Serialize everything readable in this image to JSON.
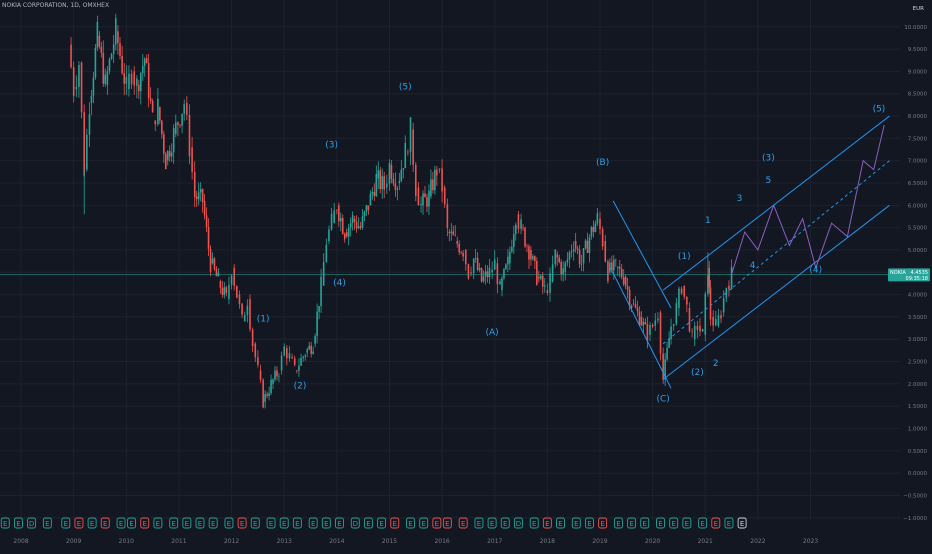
{
  "header": {
    "symbol_title": "NOKIA CORPORATION, 1D, OMXHEX",
    "currency": "EUR"
  },
  "price_tag": {
    "symbol": "NOKIA",
    "price": "4.4535",
    "countdown": "09:35:18"
  },
  "colors": {
    "background": "#131722",
    "grid": "#1e222d",
    "up": "#26a69a",
    "down": "#ef5350",
    "channel": "#2196f3",
    "projection": "#8b5fbf",
    "labels": "#2f9fe8",
    "axis_text": "#787b86"
  },
  "chart_data": {
    "type": "line",
    "title": "NOKIA CORPORATION, 1D, OMXHEX",
    "yunit": "EUR",
    "ylim": [
      -1.05,
      10.6
    ],
    "y_ticks": [
      -1.0,
      -0.5,
      0.0,
      0.5,
      1.0,
      1.5,
      2.0,
      2.5,
      3.0,
      3.5,
      4.0,
      4.5,
      5.0,
      5.5,
      6.0,
      6.5,
      7.0,
      7.5,
      8.0,
      8.5,
      9.0,
      9.5,
      10.0
    ],
    "xlim": [
      2007.6,
      2024.7
    ],
    "x_ticks": [
      "2008",
      "2009",
      "2010",
      "2011",
      "2012",
      "2013",
      "2014",
      "2015",
      "2016",
      "2017",
      "2018",
      "2019",
      "2020",
      "2021",
      "2022",
      "2023"
    ],
    "grid": true,
    "last_price": 4.4535,
    "series": [
      {
        "values": [
          [
            2008.9,
            9.6
          ],
          [
            2009.0,
            8.6
          ],
          [
            2009.1,
            9.2
          ],
          [
            2009.2,
            6.8
          ],
          [
            2009.3,
            8.3
          ],
          [
            2009.45,
            9.8
          ],
          [
            2009.6,
            8.7
          ],
          [
            2009.8,
            9.9
          ],
          [
            2010.0,
            8.6
          ],
          [
            2010.1,
            9.0
          ],
          [
            2010.2,
            8.7
          ],
          [
            2010.35,
            9.3
          ],
          [
            2010.5,
            7.9
          ],
          [
            2010.6,
            8.2
          ],
          [
            2010.75,
            7.0
          ],
          [
            2010.9,
            7.6
          ],
          [
            2011.1,
            8.3
          ],
          [
            2011.2,
            7.3
          ],
          [
            2011.3,
            6.2
          ],
          [
            2011.45,
            6.1
          ],
          [
            2011.6,
            4.7
          ],
          [
            2011.75,
            4.3
          ],
          [
            2011.9,
            3.9
          ],
          [
            2012.0,
            4.6
          ],
          [
            2012.1,
            4.0
          ],
          [
            2012.2,
            3.4
          ],
          [
            2012.3,
            3.9
          ],
          [
            2012.4,
            2.9
          ],
          [
            2012.5,
            2.3
          ],
          [
            2012.6,
            1.6
          ],
          [
            2012.75,
            2.0
          ],
          [
            2012.9,
            2.3
          ],
          [
            2013.0,
            2.8
          ],
          [
            2013.1,
            2.6
          ],
          [
            2013.2,
            2.3
          ],
          [
            2013.4,
            2.7
          ],
          [
            2013.55,
            2.9
          ],
          [
            2013.7,
            4.2
          ],
          [
            2013.8,
            5.2
          ],
          [
            2013.9,
            5.6
          ],
          [
            2014.0,
            6.0
          ],
          [
            2014.15,
            5.4
          ],
          [
            2014.3,
            5.7
          ],
          [
            2014.45,
            5.5
          ],
          [
            2014.6,
            6.0
          ],
          [
            2014.75,
            6.6
          ],
          [
            2014.9,
            6.4
          ],
          [
            2015.0,
            6.9
          ],
          [
            2015.15,
            6.5
          ],
          [
            2015.3,
            7.2
          ],
          [
            2015.4,
            7.7
          ],
          [
            2015.5,
            6.4
          ],
          [
            2015.6,
            6.0
          ],
          [
            2015.75,
            6.2
          ],
          [
            2015.9,
            6.8
          ],
          [
            2016.0,
            6.4
          ],
          [
            2016.1,
            5.4
          ],
          [
            2016.25,
            5.2
          ],
          [
            2016.4,
            5.0
          ],
          [
            2016.5,
            4.5
          ],
          [
            2016.6,
            4.8
          ],
          [
            2016.75,
            4.3
          ],
          [
            2016.9,
            4.5
          ],
          [
            2017.0,
            4.7
          ],
          [
            2017.1,
            4.1
          ],
          [
            2017.25,
            4.7
          ],
          [
            2017.4,
            5.8
          ],
          [
            2017.5,
            5.5
          ],
          [
            2017.65,
            5.0
          ],
          [
            2017.8,
            4.4
          ],
          [
            2017.95,
            4.1
          ],
          [
            2018.05,
            4.3
          ],
          [
            2018.15,
            4.9
          ],
          [
            2018.3,
            4.5
          ],
          [
            2018.5,
            5.2
          ],
          [
            2018.65,
            4.7
          ],
          [
            2018.8,
            5.3
          ],
          [
            2018.95,
            5.7
          ],
          [
            2019.05,
            5.2
          ],
          [
            2019.15,
            4.5
          ],
          [
            2019.3,
            4.6
          ],
          [
            2019.45,
            4.4
          ],
          [
            2019.6,
            3.8
          ],
          [
            2019.75,
            3.5
          ],
          [
            2019.9,
            3.1
          ],
          [
            2020.0,
            3.3
          ],
          [
            2020.1,
            3.6
          ],
          [
            2020.2,
            2.1
          ],
          [
            2020.35,
            3.3
          ],
          [
            2020.45,
            3.7
          ],
          [
            2020.55,
            4.2
          ],
          [
            2020.65,
            3.7
          ],
          [
            2020.75,
            3.0
          ],
          [
            2020.85,
            3.3
          ],
          [
            2020.95,
            3.1
          ],
          [
            2021.05,
            4.6
          ],
          [
            2021.1,
            3.5
          ],
          [
            2021.2,
            3.3
          ],
          [
            2021.3,
            3.6
          ],
          [
            2021.4,
            4.2
          ],
          [
            2021.5,
            4.45
          ]
        ]
      },
      {
        "values": [
          [
            2021.5,
            4.45
          ],
          [
            2021.75,
            5.4
          ],
          [
            2022.0,
            5.0
          ],
          [
            2022.3,
            6.0
          ],
          [
            2022.6,
            5.1
          ],
          [
            2022.85,
            5.7
          ],
          [
            2023.1,
            4.6
          ],
          [
            2023.4,
            5.6
          ],
          [
            2023.7,
            5.3
          ],
          [
            2024.0,
            7.0
          ],
          [
            2024.2,
            6.8
          ],
          [
            2024.4,
            7.8
          ]
        ]
      }
    ],
    "channels": [
      {
        "upper": [
          [
            2019.25,
            6.1
          ],
          [
            2020.35,
            3.7
          ]
        ],
        "lower": [
          [
            2019.2,
            4.6
          ],
          [
            2020.35,
            1.9
          ]
        ]
      },
      {
        "upper": [
          [
            2020.2,
            4.1
          ],
          [
            2024.5,
            8.0
          ]
        ],
        "mid": [
          [
            2020.2,
            2.9
          ],
          [
            2024.5,
            7.0
          ]
        ],
        "lower": [
          [
            2020.2,
            2.1
          ],
          [
            2024.5,
            6.0
          ]
        ]
      }
    ],
    "wave_labels": [
      {
        "text": "(1)",
        "x": 2012.6,
        "y": 3.4
      },
      {
        "text": "(2)",
        "x": 2013.3,
        "y": 1.9
      },
      {
        "text": "(3)",
        "x": 2013.9,
        "y": 7.3
      },
      {
        "text": "(4)",
        "x": 2014.05,
        "y": 4.2
      },
      {
        "text": "(5)",
        "x": 2015.3,
        "y": 8.6
      },
      {
        "text": "(A)",
        "x": 2016.95,
        "y": 3.1
      },
      {
        "text": "(B)",
        "x": 2019.05,
        "y": 6.9
      },
      {
        "text": "(C)",
        "x": 2020.2,
        "y": 1.6
      },
      {
        "text": "(1)",
        "x": 2020.6,
        "y": 4.8
      },
      {
        "text": "(2)",
        "x": 2020.85,
        "y": 2.2
      },
      {
        "text": "1",
        "x": 2021.05,
        "y": 5.6
      },
      {
        "text": "2",
        "x": 2021.2,
        "y": 2.4
      },
      {
        "text": "3",
        "x": 2021.65,
        "y": 6.1
      },
      {
        "text": "4",
        "x": 2021.9,
        "y": 4.6
      },
      {
        "text": "(3)",
        "x": 2022.2,
        "y": 7.0
      },
      {
        "text": "5",
        "x": 2022.2,
        "y": 6.5
      },
      {
        "text": "(4)",
        "x": 2023.1,
        "y": 4.5
      },
      {
        "text": "(5)",
        "x": 2024.3,
        "y": 8.1
      }
    ],
    "event_markers": [
      {
        "t": "E",
        "x": 2007.7,
        "c": "up"
      },
      {
        "t": "E",
        "x": 2007.95,
        "c": "up"
      },
      {
        "t": "D",
        "x": 2008.2,
        "c": "up"
      },
      {
        "t": "E",
        "x": 2008.5,
        "c": "up"
      },
      {
        "t": "E",
        "x": 2008.85,
        "c": "up"
      },
      {
        "t": "E",
        "x": 2009.1,
        "c": "down"
      },
      {
        "t": "E",
        "x": 2009.35,
        "c": "up"
      },
      {
        "t": "E",
        "x": 2009.6,
        "c": "down"
      },
      {
        "t": "E",
        "x": 2009.9,
        "c": "up"
      },
      {
        "t": "E",
        "x": 2010.1,
        "c": "up"
      },
      {
        "t": "E",
        "x": 2010.35,
        "c": "down"
      },
      {
        "t": "E",
        "x": 2010.6,
        "c": "up"
      },
      {
        "t": "E",
        "x": 2010.9,
        "c": "up"
      },
      {
        "t": "E",
        "x": 2011.15,
        "c": "up"
      },
      {
        "t": "E",
        "x": 2011.4,
        "c": "up"
      },
      {
        "t": "E",
        "x": 2011.65,
        "c": "up"
      },
      {
        "t": "E",
        "x": 2011.95,
        "c": "up"
      },
      {
        "t": "E",
        "x": 2012.2,
        "c": "down"
      },
      {
        "t": "E",
        "x": 2012.45,
        "c": "up"
      },
      {
        "t": "E",
        "x": 2012.75,
        "c": "up"
      },
      {
        "t": "E",
        "x": 2013.0,
        "c": "up"
      },
      {
        "t": "E",
        "x": 2013.25,
        "c": "up"
      },
      {
        "t": "E",
        "x": 2013.55,
        "c": "up"
      },
      {
        "t": "E",
        "x": 2013.8,
        "c": "up"
      },
      {
        "t": "E",
        "x": 2014.05,
        "c": "up"
      },
      {
        "t": "D",
        "x": 2014.35,
        "c": "up"
      },
      {
        "t": "E",
        "x": 2014.6,
        "c": "up"
      },
      {
        "t": "E",
        "x": 2014.85,
        "c": "up"
      },
      {
        "t": "E",
        "x": 2015.1,
        "c": "down"
      },
      {
        "t": "E",
        "x": 2015.4,
        "c": "up"
      },
      {
        "t": "E",
        "x": 2015.65,
        "c": "up"
      },
      {
        "t": "E",
        "x": 2015.9,
        "c": "down"
      },
      {
        "t": "E",
        "x": 2016.1,
        "c": "down"
      },
      {
        "t": "E",
        "x": 2016.4,
        "c": "down"
      },
      {
        "t": "E",
        "x": 2016.7,
        "c": "up"
      },
      {
        "t": "E",
        "x": 2016.95,
        "c": "up"
      },
      {
        "t": "E",
        "x": 2017.2,
        "c": "up"
      },
      {
        "t": "D",
        "x": 2017.45,
        "c": "up"
      },
      {
        "t": "E",
        "x": 2017.75,
        "c": "up"
      },
      {
        "t": "E",
        "x": 2018.0,
        "c": "down"
      },
      {
        "t": "E",
        "x": 2018.25,
        "c": "up"
      },
      {
        "t": "E",
        "x": 2018.55,
        "c": "up"
      },
      {
        "t": "E",
        "x": 2018.8,
        "c": "up"
      },
      {
        "t": "E",
        "x": 2019.05,
        "c": "down"
      },
      {
        "t": "E",
        "x": 2019.35,
        "c": "up"
      },
      {
        "t": "E",
        "x": 2019.6,
        "c": "up"
      },
      {
        "t": "E",
        "x": 2019.85,
        "c": "up"
      },
      {
        "t": "E",
        "x": 2020.15,
        "c": "up"
      },
      {
        "t": "E",
        "x": 2020.4,
        "c": "up"
      },
      {
        "t": "E",
        "x": 2020.65,
        "c": "up"
      },
      {
        "t": "E",
        "x": 2020.95,
        "c": "up"
      },
      {
        "t": "E",
        "x": 2021.2,
        "c": "down"
      },
      {
        "t": "E",
        "x": 2021.45,
        "c": "up"
      },
      {
        "t": "E",
        "x": 2021.7,
        "c": "next"
      }
    ]
  }
}
